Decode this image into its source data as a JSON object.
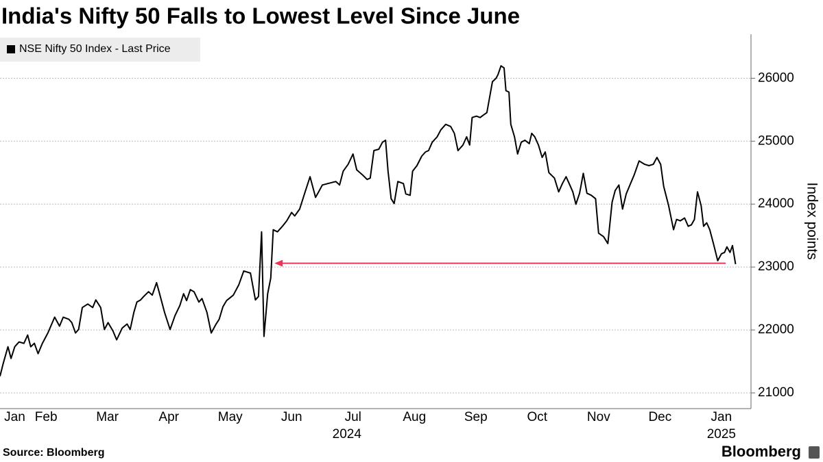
{
  "chart_data": {
    "type": "line",
    "title": "India's Nifty 50 Falls to Lowest Level Since June",
    "y_axis_label": "Index points",
    "source": "Source: Bloomberg",
    "logo": "Bloomberg",
    "legend": "top-left",
    "grid": true,
    "xlim": [
      0.75,
      12.87
    ],
    "xticks": [
      {
        "value": 0.99,
        "label": "Jan"
      },
      {
        "value": 1.5,
        "label": "Feb"
      },
      {
        "value": 2.5,
        "label": "Mar"
      },
      {
        "value": 3.5,
        "label": "Apr"
      },
      {
        "value": 4.5,
        "label": "May"
      },
      {
        "value": 5.5,
        "label": "Jun"
      },
      {
        "value": 6.5,
        "label": "Jul"
      },
      {
        "value": 7.5,
        "label": "Aug"
      },
      {
        "value": 8.5,
        "label": "Sep"
      },
      {
        "value": 9.5,
        "label": "Oct"
      },
      {
        "value": 10.5,
        "label": "Nov"
      },
      {
        "value": 11.5,
        "label": "Dec"
      },
      {
        "value": 12.5,
        "label": "Jan"
      }
    ],
    "year_labels": [
      {
        "value": 6.4,
        "label": "2024"
      },
      {
        "value": 12.5,
        "label": "2025"
      }
    ],
    "ylim": [
      20750,
      26700
    ],
    "yticks": [
      21000,
      22000,
      23000,
      24000,
      25000,
      26000
    ],
    "annotation_arrow": {
      "x": [
        5.22,
        12.57
      ],
      "y": 23060,
      "color": "#e8375a"
    },
    "x": [
      0.75,
      0.8,
      0.88,
      0.93,
      0.99,
      1.06,
      1.14,
      1.2,
      1.25,
      1.31,
      1.37,
      1.44,
      1.53,
      1.64,
      1.72,
      1.78,
      1.87,
      1.92,
      1.98,
      2.03,
      2.09,
      2.18,
      2.26,
      2.31,
      2.39,
      2.45,
      2.51,
      2.59,
      2.65,
      2.74,
      2.82,
      2.87,
      2.93,
      2.98,
      3.04,
      3.09,
      3.17,
      3.23,
      3.3,
      3.34,
      3.43,
      3.52,
      3.6,
      3.68,
      3.74,
      3.79,
      3.85,
      3.91,
      3.99,
      4.04,
      4.12,
      4.19,
      4.27,
      4.32,
      4.38,
      4.44,
      4.55,
      4.64,
      4.72,
      4.83,
      4.91,
      4.96,
      5.01,
      5.05,
      5.11,
      5.16,
      5.2,
      5.27,
      5.35,
      5.42,
      5.5,
      5.55,
      5.63,
      5.72,
      5.8,
      5.89,
      5.94,
      6.0,
      6.09,
      6.22,
      6.28,
      6.34,
      6.42,
      6.5,
      6.56,
      6.65,
      6.73,
      6.78,
      6.84,
      6.92,
      6.98,
      7.03,
      7.07,
      7.12,
      7.17,
      7.23,
      7.32,
      7.36,
      7.43,
      7.47,
      7.54,
      7.62,
      7.68,
      7.73,
      7.79,
      7.87,
      7.93,
      8.01,
      8.09,
      8.15,
      8.21,
      8.29,
      8.35,
      8.4,
      8.44,
      8.51,
      8.57,
      8.63,
      8.68,
      8.72,
      8.77,
      8.83,
      8.86,
      8.91,
      8.96,
      8.99,
      9.04,
      9.07,
      9.13,
      9.18,
      9.24,
      9.3,
      9.37,
      9.41,
      9.46,
      9.52,
      9.58,
      9.63,
      9.69,
      9.78,
      9.85,
      9.91,
      9.97,
      10.02,
      10.08,
      10.13,
      10.19,
      10.25,
      10.31,
      10.38,
      10.45,
      10.5,
      10.58,
      10.65,
      10.72,
      10.77,
      10.83,
      10.89,
      10.95,
      11.01,
      11.08,
      11.16,
      11.25,
      11.32,
      11.39,
      11.45,
      11.51,
      11.56,
      11.64,
      11.72,
      11.77,
      11.83,
      11.9,
      11.96,
      12.01,
      12.06,
      12.11,
      12.17,
      12.21,
      12.26,
      12.31,
      12.37,
      12.44,
      12.5,
      12.55,
      12.59,
      12.64,
      12.68,
      12.73
    ],
    "series": [
      {
        "name": "NSE Nifty 50 Index - Last Price",
        "color": "#000000",
        "values": [
          21263,
          21460,
          21733,
          21547,
          21733,
          21810,
          21788,
          21919,
          21733,
          21788,
          21624,
          21788,
          21952,
          22203,
          22061,
          22203,
          22171,
          22116,
          21952,
          22007,
          22357,
          22412,
          22357,
          22477,
          22357,
          22007,
          22116,
          21985,
          21843,
          22029,
          22094,
          22007,
          22280,
          22444,
          22477,
          22532,
          22608,
          22554,
          22751,
          22608,
          22280,
          22007,
          22226,
          22390,
          22576,
          22466,
          22641,
          22608,
          22444,
          22499,
          22280,
          21952,
          22094,
          22171,
          22368,
          22466,
          22554,
          22718,
          22937,
          22904,
          22477,
          22532,
          23560,
          21898,
          22576,
          22827,
          23593,
          23560,
          23648,
          23735,
          23867,
          23812,
          23921,
          24195,
          24435,
          24107,
          24195,
          24304,
          24326,
          24359,
          24304,
          24523,
          24632,
          24796,
          24545,
          24468,
          24392,
          24414,
          24851,
          24873,
          24983,
          25015,
          24523,
          24086,
          24009,
          24359,
          24326,
          24162,
          24140,
          24523,
          24611,
          24764,
          24829,
          24851,
          24983,
          25070,
          25180,
          25267,
          25234,
          25125,
          24851,
          24939,
          25070,
          24939,
          25376,
          25398,
          25376,
          25420,
          25453,
          25672,
          25945,
          26000,
          26055,
          26197,
          26164,
          25803,
          25781,
          25267,
          25070,
          24796,
          24983,
          25015,
          24961,
          25125,
          25070,
          24939,
          24742,
          24829,
          24501,
          24414,
          24195,
          24326,
          24435,
          24326,
          24195,
          23998,
          24173,
          24490,
          24173,
          24140,
          24086,
          23538,
          23484,
          23374,
          24031,
          24217,
          24304,
          23921,
          24162,
          24304,
          24468,
          24687,
          24632,
          24611,
          24632,
          24742,
          24632,
          24282,
          23976,
          23593,
          23757,
          23735,
          23779,
          23648,
          23670,
          23757,
          24195,
          23976,
          23648,
          23703,
          23593,
          23374,
          23101,
          23210,
          23232,
          23320,
          23232,
          23341,
          23046
        ]
      }
    ]
  }
}
